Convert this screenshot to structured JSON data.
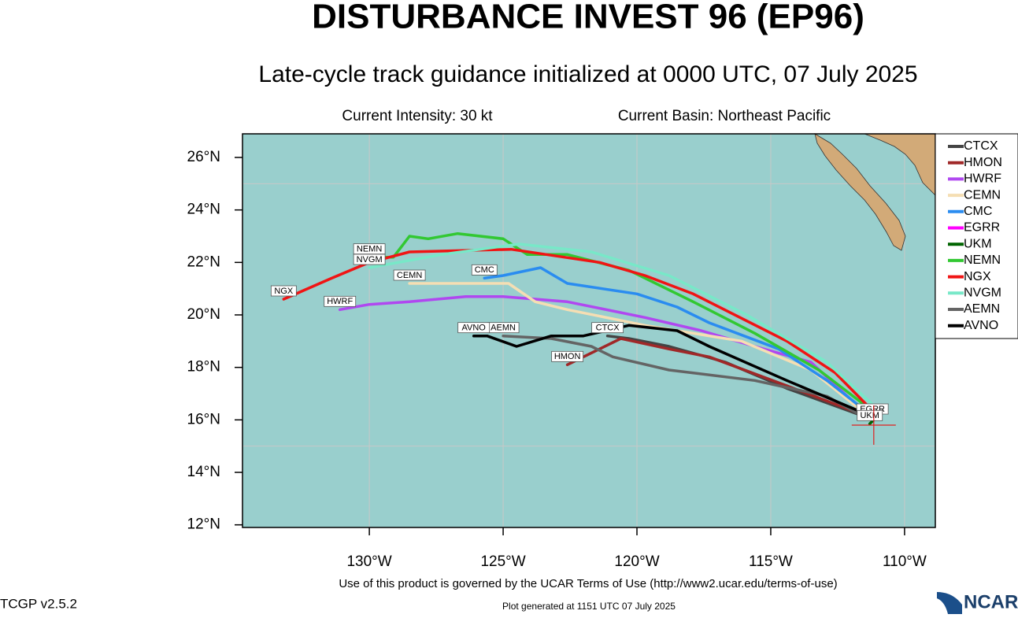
{
  "chart_data": {
    "type": "track-map",
    "title": "DISTURBANCE INVEST 96 (EP96)",
    "subtitle": "Late-cycle track guidance initialized at 0000 UTC, 07 July 2025",
    "intensity": "Current Intensity: 30 kt",
    "basin": "Current Basin: Northeast Pacific",
    "terms": "Use of this product is governed by the UCAR Terms of Use (http://www2.ucar.edu/terms-of-use)",
    "version": "TCGP v2.5.2",
    "generated": "Plot generated at 1151 UTC   07 July 2025",
    "logo": "NCAR",
    "xlim": [
      -134.74,
      -108.85
    ],
    "ylim": [
      11.9,
      26.9
    ],
    "xticks": [
      {
        "value": -130,
        "label": "130°W"
      },
      {
        "value": -125,
        "label": "125°W"
      },
      {
        "value": -120,
        "label": "120°W"
      },
      {
        "value": -115,
        "label": "115°W"
      },
      {
        "value": -110,
        "label": "110°W"
      }
    ],
    "yticks": [
      {
        "value": 12,
        "label": "12°N"
      },
      {
        "value": 14,
        "label": "14°N"
      },
      {
        "value": 16,
        "label": "16°N"
      },
      {
        "value": 18,
        "label": "18°N"
      },
      {
        "value": 20,
        "label": "20°N"
      },
      {
        "value": 22,
        "label": "22°N"
      },
      {
        "value": 24,
        "label": "24°N"
      },
      {
        "value": 26,
        "label": "26°N"
      }
    ],
    "ygrid": [
      15,
      25
    ],
    "current_position": [
      -111.15,
      15.8
    ],
    "series": [
      {
        "name": "CTCX",
        "color": "#444444",
        "x": [
          -111.15,
          -114.4,
          -116.7,
          -118.8,
          -120.3,
          -121.1
        ],
        "values": [
          16.0,
          17.2,
          18.2,
          18.8,
          19.1,
          19.2
        ]
      },
      {
        "name": "HMON",
        "color": "#a02828",
        "x": [
          -111.3,
          -114.4,
          -117.3,
          -118.8,
          -120.6,
          -122.0,
          -122.6
        ],
        "values": [
          16.1,
          17.3,
          18.4,
          18.7,
          19.1,
          18.4,
          18.1
        ]
      },
      {
        "name": "HWRF",
        "color": "#b048f0",
        "x": [
          -111.3,
          -113.5,
          -115.6,
          -117.6,
          -119.7,
          -122.6,
          -125.0,
          -126.4,
          -128.5,
          -130.0,
          -131.1
        ],
        "values": [
          16.1,
          18.2,
          18.8,
          19.4,
          19.9,
          20.5,
          20.7,
          20.7,
          20.5,
          20.4,
          20.2
        ]
      },
      {
        "name": "CEMN",
        "color": "#f5deb3",
        "x": [
          -111.3,
          -113.5,
          -116.1,
          -119.7,
          -122.6,
          -123.8,
          -124.8,
          -128.5
        ],
        "values": [
          16.1,
          17.9,
          19.0,
          19.6,
          20.2,
          20.5,
          21.2,
          21.2
        ]
      },
      {
        "name": "CMC",
        "color": "#2a8cf0",
        "x": [
          -111.15,
          -112.9,
          -114.7,
          -117.3,
          -118.5,
          -120.0,
          -122.6,
          -123.6,
          -125.0,
          -125.7
        ],
        "values": [
          16.1,
          17.5,
          18.7,
          19.7,
          20.3,
          20.8,
          21.2,
          21.8,
          21.5,
          21.4
        ]
      },
      {
        "name": "EGRR",
        "color": "#ff00ff",
        "x": [
          -111.15,
          -111.2
        ],
        "values": [
          16.3,
          16.1
        ]
      },
      {
        "name": "UKM",
        "color": "#006400",
        "x": [
          -111.15,
          -111.3
        ],
        "values": [
          16.0,
          15.85
        ]
      },
      {
        "name": "NEMN",
        "color": "#32c832",
        "x": [
          -111.15,
          -113.2,
          -115.6,
          -117.9,
          -120.3,
          -122.6,
          -124.1,
          -125.0,
          -126.7,
          -127.8,
          -128.5,
          -129.1,
          -130.0
        ],
        "values": [
          16.3,
          17.9,
          19.3,
          20.5,
          21.7,
          22.3,
          22.3,
          22.9,
          23.1,
          22.9,
          23.0,
          22.2,
          22.2
        ]
      },
      {
        "name": "NGX",
        "color": "#f01414",
        "x": [
          -111.15,
          -112.6,
          -114.4,
          -117.9,
          -119.7,
          -121.4,
          -124.7,
          -128.5,
          -130.0,
          -131.4,
          -133.2
        ],
        "values": [
          16.3,
          17.8,
          19.0,
          20.8,
          21.5,
          22.0,
          22.5,
          22.4,
          22.0,
          21.4,
          20.6
        ]
      },
      {
        "name": "NVGM",
        "color": "#78e8c8",
        "x": [
          -111.0,
          -112.9,
          -115.9,
          -118.8,
          -121.7,
          -124.4,
          -127.3,
          -130.0
        ],
        "values": [
          16.4,
          18.2,
          20.0,
          21.5,
          22.4,
          22.7,
          22.3,
          21.8
        ]
      },
      {
        "name": "AEMN",
        "color": "#646464",
        "x": [
          -111.5,
          -112.9,
          -115.6,
          -118.8,
          -120.9,
          -121.7,
          -123.2,
          -125.0
        ],
        "values": [
          16.1,
          16.9,
          17.5,
          17.9,
          18.4,
          18.8,
          19.1,
          19.2
        ]
      },
      {
        "name": "AVNO",
        "color": "#000000",
        "x": [
          -111.15,
          -114.4,
          -117.3,
          -118.5,
          -120.3,
          -122.0,
          -123.2,
          -124.5,
          -125.6,
          -126.1
        ],
        "values": [
          16.1,
          17.5,
          18.8,
          19.4,
          19.6,
          19.2,
          19.2,
          18.8,
          19.2,
          19.2
        ]
      }
    ]
  }
}
